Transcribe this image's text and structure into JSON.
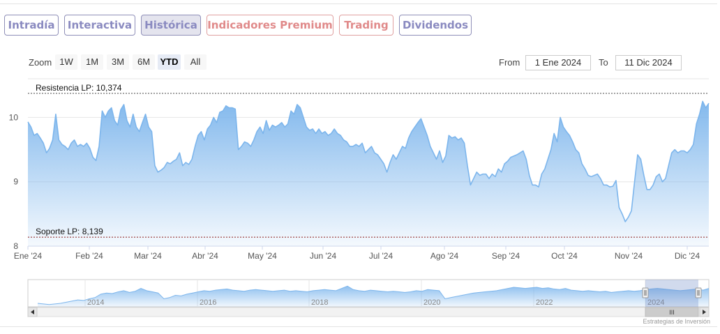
{
  "tabs": [
    {
      "label": "Intradía",
      "active": false,
      "premium": false
    },
    {
      "label": "Interactiva",
      "active": false,
      "premium": false
    },
    {
      "label": "Histórica",
      "active": true,
      "premium": false
    },
    {
      "label": "Indicadores Premium",
      "active": false,
      "premium": true
    },
    {
      "label": "Trading",
      "active": false,
      "premium": true
    },
    {
      "label": "Dividendos",
      "active": false,
      "premium": false
    }
  ],
  "range_selector": {
    "zoom_label": "Zoom",
    "buttons": [
      "1W",
      "1M",
      "3M",
      "6M",
      "YTD",
      "All"
    ],
    "selected": "YTD",
    "from_label": "From",
    "from_value": "1 Ene 2024",
    "to_label": "To",
    "to_value": "11 Dic 2024"
  },
  "credit": "Estrategias de Inversión",
  "colors": {
    "series_line": "#7cb5ec",
    "resistance_line": "#4a4a4a",
    "support_line": "#8b1a1a",
    "tab_border": "#8f8fb8",
    "tab_premium": "#e08a8a"
  },
  "chart_data": {
    "type": "area",
    "title": "",
    "xlabel": "",
    "ylabel": "",
    "ylim": [
      8,
      10.6
    ],
    "yticks": [
      8,
      9,
      10
    ],
    "xticks": [
      "Ene '24",
      "Feb '24",
      "Mar '24",
      "Abr '24",
      "May '24",
      "Jun '24",
      "Jul '24",
      "Ago '24",
      "Sep '24",
      "Oct '24",
      "Nov '24",
      "Dic '24"
    ],
    "grid": true,
    "legend": "none",
    "series": [
      {
        "values": [
          9.93,
          9.85,
          9.72,
          9.75,
          9.68,
          9.6,
          9.45,
          9.52,
          9.65,
          10.05,
          9.65,
          9.58,
          9.55,
          9.5,
          9.6,
          9.65,
          9.55,
          9.58,
          9.55,
          9.6,
          9.52,
          9.38,
          9.33,
          9.55,
          10.1,
          10.0,
          10.1,
          10.15,
          9.95,
          9.88,
          10.12,
          10.2,
          9.95,
          9.85,
          10.05,
          9.85,
          9.78,
          9.92,
          10.05,
          9.85,
          9.78,
          9.25,
          9.15,
          9.18,
          9.22,
          9.3,
          9.28,
          9.32,
          9.35,
          9.45,
          9.25,
          9.3,
          9.27,
          9.35,
          9.55,
          9.72,
          9.78,
          9.65,
          9.82,
          9.88,
          10.0,
          9.92,
          10.08,
          10.1,
          10.18,
          10.15,
          10.15,
          10.13,
          9.5,
          9.55,
          9.62,
          9.6,
          9.55,
          9.65,
          9.78,
          9.85,
          9.75,
          9.95,
          9.8,
          9.88,
          9.85,
          9.88,
          9.92,
          9.85,
          9.9,
          10.1,
          10.05,
          10.2,
          10.15,
          10.0,
          9.85,
          9.8,
          9.82,
          9.75,
          9.82,
          9.75,
          9.78,
          9.72,
          9.75,
          9.82,
          9.75,
          9.72,
          9.65,
          9.62,
          9.55,
          9.55,
          9.58,
          9.55,
          9.6,
          9.45,
          9.5,
          9.55,
          9.45,
          9.42,
          9.35,
          9.28,
          9.15,
          9.3,
          9.42,
          9.35,
          9.45,
          9.55,
          9.52,
          9.68,
          9.78,
          9.85,
          9.92,
          9.98,
          9.85,
          9.72,
          9.55,
          9.45,
          9.35,
          9.48,
          9.3,
          9.4,
          9.72,
          9.68,
          9.7,
          9.65,
          9.68,
          9.6,
          9.25,
          8.95,
          9.05,
          9.15,
          9.1,
          9.12,
          9.12,
          9.05,
          9.12,
          9.08,
          9.2,
          9.15,
          9.28,
          9.32,
          9.38,
          9.4,
          9.42,
          9.45,
          9.48,
          9.35,
          9.1,
          8.95,
          8.95,
          8.92,
          9.12,
          9.2,
          9.35,
          9.5,
          9.75,
          9.62,
          10.0,
          9.85,
          9.78,
          9.72,
          9.62,
          9.5,
          9.45,
          9.28,
          9.2,
          9.1,
          9.08,
          9.1,
          9.12,
          9.05,
          8.95,
          8.95,
          8.92,
          8.93,
          9.02,
          8.6,
          8.5,
          8.38,
          8.45,
          8.55,
          9.0,
          9.42,
          9.35,
          9.1,
          8.88,
          8.88,
          8.95,
          9.08,
          9.12,
          9.0,
          9.05,
          9.25,
          9.45,
          9.5,
          9.45,
          9.48,
          9.48,
          9.45,
          9.5,
          9.58,
          9.9,
          10.05,
          10.25,
          10.15,
          10.22
        ]
      }
    ],
    "plot_lines": [
      {
        "label": "Resistencia LP: 10,374",
        "value": 10.374
      },
      {
        "label": "Soporte LP: 8,139",
        "value": 8.139
      }
    ],
    "navigator": {
      "xticks": [
        "2014",
        "2016",
        "2018",
        "2020",
        "2022",
        "2024"
      ],
      "scroll_grip": "III",
      "values": [
        8.8,
        8.75,
        8.7,
        8.75,
        8.8,
        8.9,
        9.0,
        9.1,
        9.05,
        9.2,
        9.3,
        9.6,
        9.7,
        9.65,
        9.8,
        9.9,
        9.75,
        9.85,
        10.1,
        9.9,
        9.8,
        9.7,
        9.2,
        9.3,
        9.5,
        9.45,
        9.6,
        9.7,
        9.8,
        9.9,
        9.85,
        9.95,
        10.0,
        10.05,
        9.95,
        9.9,
        9.85,
        9.95,
        10.0,
        9.95,
        9.9,
        9.85,
        9.9,
        9.95,
        9.85,
        9.9,
        9.85,
        9.8,
        9.9,
        9.95,
        10.0,
        9.95,
        9.9,
        10.1,
        10.3,
        10.0,
        9.9,
        9.85,
        9.95,
        9.9,
        9.85,
        9.8,
        9.85,
        9.8,
        9.75,
        9.8,
        9.9,
        9.85,
        10.0,
        9.95,
        9.9,
        9.2,
        9.3,
        9.4,
        9.5,
        9.6,
        9.7,
        9.75,
        9.8,
        9.85,
        9.9,
        10.0,
        10.1,
        10.2,
        10.15,
        10.1,
        10.15,
        10.2,
        10.1,
        10.15,
        10.05,
        10.0,
        10.1,
        9.95,
        9.9,
        9.85,
        9.9,
        9.85,
        9.8,
        9.85,
        9.75,
        9.8,
        9.85,
        9.9,
        9.85,
        9.9,
        10.0,
        10.05,
        10.1,
        10.05,
        10.0,
        9.95,
        9.9,
        9.95,
        10.0,
        10.05,
        9.95,
        10.1
      ]
    }
  }
}
